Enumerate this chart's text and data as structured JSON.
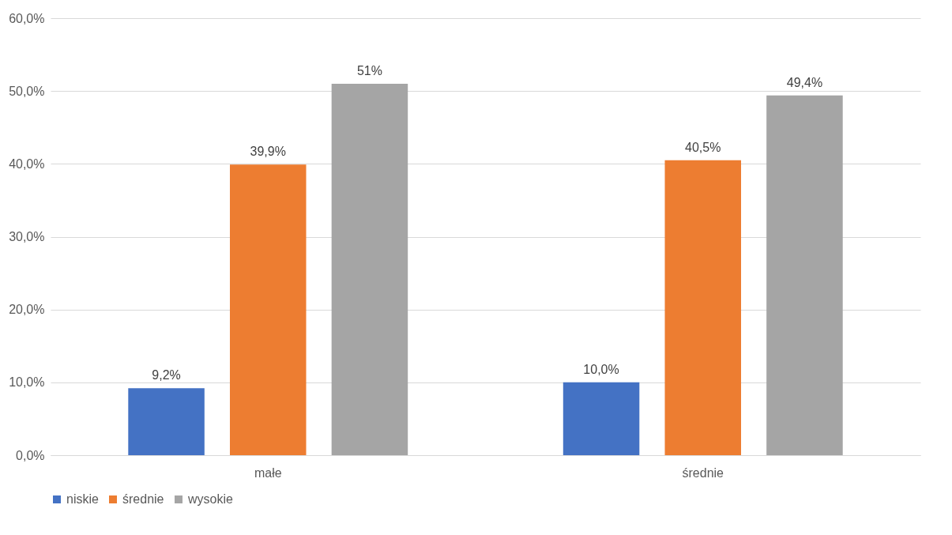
{
  "chart_data": {
    "type": "bar",
    "categories": [
      "małe",
      "średnie"
    ],
    "series": [
      {
        "name": "niskie",
        "color": "#4472c4",
        "values": [
          9.2,
          10.0
        ],
        "value_labels": [
          "9,2%",
          "10,0%"
        ]
      },
      {
        "name": "średnie",
        "color": "#ed7d31",
        "values": [
          39.9,
          40.5
        ],
        "value_labels": [
          "39,9%",
          "40,5%"
        ]
      },
      {
        "name": "wysokie",
        "color": "#a5a5a5",
        "values": [
          51,
          49.4
        ],
        "value_labels": [
          "51%",
          "49,4%"
        ]
      }
    ],
    "ylim": [
      0,
      60
    ],
    "yticks": [
      {
        "value": 0,
        "label": "0,0%"
      },
      {
        "value": 10,
        "label": "10,0%"
      },
      {
        "value": 20,
        "label": "20,0%"
      },
      {
        "value": 30,
        "label": "30,0%"
      },
      {
        "value": 40,
        "label": "40,0%"
      },
      {
        "value": 50,
        "label": "50,0%"
      },
      {
        "value": 60,
        "label": "60,0%"
      }
    ],
    "grid": "y",
    "legend": "bottom"
  }
}
